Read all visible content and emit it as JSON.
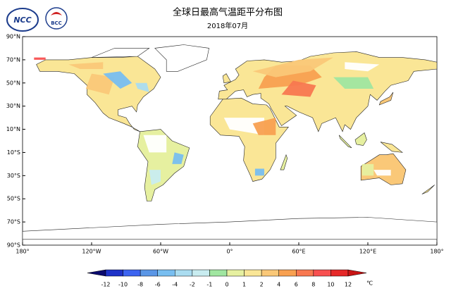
{
  "header": {
    "title": "全球日最高气温距平分布图",
    "subtitle": "2018年07月"
  },
  "logos": [
    "NCC",
    "BCC"
  ],
  "map": {
    "lat_labels": [
      "90°N",
      "70°N",
      "50°N",
      "30°N",
      "10°N",
      "10°S",
      "30°S",
      "50°S",
      "70°S",
      "90°S"
    ],
    "lon_labels": [
      "180°",
      "120°W",
      "60°W",
      "0°",
      "60°E",
      "120°E",
      "180°"
    ]
  },
  "colorbar": {
    "ticks": [
      -12,
      -10,
      -8,
      -6,
      -4,
      -2,
      -1,
      0,
      1,
      2,
      4,
      6,
      8,
      10,
      12
    ],
    "colors": [
      "#0a0a6e",
      "#1e32c8",
      "#3c64f0",
      "#5a96e6",
      "#78bef0",
      "#aadcf0",
      "#c8ecf0",
      "#a0e6a0",
      "#e6f0a0",
      "#fae696",
      "#fac878",
      "#f8a050",
      "#f87850",
      "#f85050",
      "#e62828",
      "#c81414"
    ],
    "unit": "℃"
  }
}
